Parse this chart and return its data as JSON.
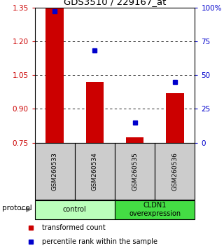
{
  "title": "GDS3510 / 229167_at",
  "samples": [
    "GSM260533",
    "GSM260534",
    "GSM260535",
    "GSM260536"
  ],
  "bar_values": [
    1.345,
    1.02,
    0.775,
    0.97
  ],
  "bar_baseline": 0.75,
  "percentile_values": [
    97,
    68,
    15,
    45
  ],
  "ylim_left": [
    0.75,
    1.35
  ],
  "ylim_right": [
    0,
    100
  ],
  "left_ticks": [
    0.75,
    0.9,
    1.05,
    1.2,
    1.35
  ],
  "right_ticks": [
    0,
    25,
    50,
    75,
    100
  ],
  "right_tick_labels": [
    "0",
    "25",
    "50",
    "75",
    "100%"
  ],
  "bar_color": "#cc0000",
  "marker_color": "#0000cc",
  "groups": [
    {
      "label": "control",
      "color": "#bbffbb"
    },
    {
      "label": "CLDN1\noverexpression",
      "color": "#44dd44"
    }
  ],
  "protocol_label": "protocol",
  "legend_items": [
    {
      "label": "transformed count",
      "color": "#cc0000"
    },
    {
      "label": "percentile rank within the sample",
      "color": "#0000cc"
    }
  ],
  "sample_box_color": "#cccccc",
  "plot_bg": "#ffffff"
}
